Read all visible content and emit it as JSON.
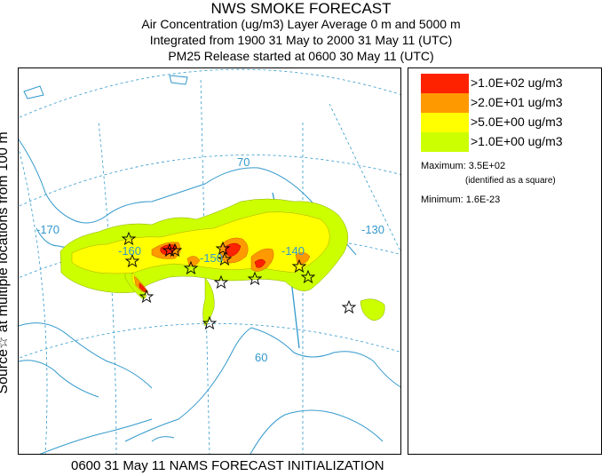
{
  "header": {
    "title": "NWS SMOKE FORECAST",
    "line2": "Air Concentration (ug/m3) Layer Average    0 m and  5000 m",
    "line3": "Integrated from 1900 31 May to 2000 31 May 11 (UTC)",
    "line4": "PM25 Release started at 0600 30 May 11 (UTC)"
  },
  "side_label": "Source☆ at multiple locations   from   100 m",
  "legend": {
    "items": [
      {
        "label": ">1.0E+02 ug/m3",
        "color": "#ff2200"
      },
      {
        "label": ">2.0E+01 ug/m3",
        "color": "#ff9900"
      },
      {
        "label": ">5.0E+00 ug/m3",
        "color": "#ffff00"
      },
      {
        "label": ">1.0E+00 ug/m3",
        "color": "#ccff00"
      }
    ],
    "maximum_label": "Maximum: 3.5E+02",
    "maximum_note": "(identified as a square)",
    "minimum_label": "Minimum: 1.6E-23"
  },
  "map": {
    "grid_labels": {
      "lat70": "70",
      "lat60": "60",
      "lon_m170": "-170",
      "lon_m160": "-160",
      "lon_m150": "-150",
      "lon_m140": "-140",
      "lon_m130": "-130"
    },
    "colors": {
      "grid": "#3399cc",
      "coast": "#3399cc",
      "star": "#000000"
    }
  },
  "footer": "0600 31 May 11 NAMS FORECAST INITIALIZATION"
}
